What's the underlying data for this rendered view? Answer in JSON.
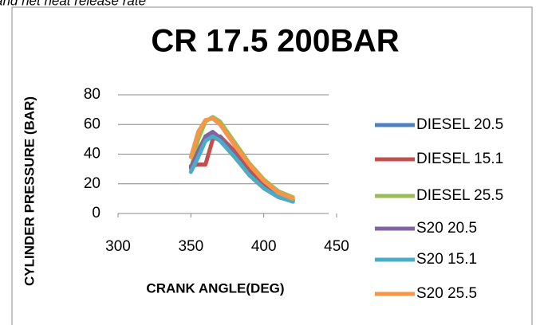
{
  "caption": "and net heat release rate",
  "chart_data": {
    "type": "line",
    "title": "CR 17.5 200BAR",
    "x_label": "CRANK ANGLE(DEG)",
    "y_label": "CYLINDER PRESSURE (BAR)",
    "x": [
      350,
      355,
      360,
      365,
      370,
      380,
      390,
      400,
      410,
      420
    ],
    "series": [
      {
        "name": "DIESEL 20.5",
        "color": "#4f81bd",
        "values": [
          30,
          40,
          50,
          54,
          51,
          40,
          27,
          18,
          12,
          9
        ]
      },
      {
        "name": "DIESEL 15.1",
        "color": "#c0504d",
        "values": [
          32,
          33,
          33,
          50,
          52,
          42,
          29,
          19,
          13,
          9
        ]
      },
      {
        "name": "DIESEL 25.5",
        "color": "#9bbb59",
        "values": [
          30,
          50,
          62,
          65,
          62,
          48,
          34,
          23,
          15,
          11
        ]
      },
      {
        "name": "S20 20.5",
        "color": "#8064a2",
        "values": [
          31,
          42,
          52,
          55,
          51,
          39,
          26,
          17,
          12,
          8
        ]
      },
      {
        "name": "S20 15.1",
        "color": "#4bacc6",
        "values": [
          28,
          38,
          49,
          52,
          49,
          38,
          26,
          17,
          11,
          8
        ]
      },
      {
        "name": "S20 25.5",
        "color": "#f79646",
        "values": [
          38,
          55,
          63,
          64,
          60,
          46,
          33,
          22,
          14,
          10
        ]
      }
    ],
    "xlim": [
      300,
      450
    ],
    "xticks": [
      300,
      350,
      400,
      450
    ],
    "ylim": [
      0,
      80
    ],
    "yticks": [
      0,
      20,
      40,
      60,
      80
    ],
    "grid": true,
    "legend": "right"
  }
}
